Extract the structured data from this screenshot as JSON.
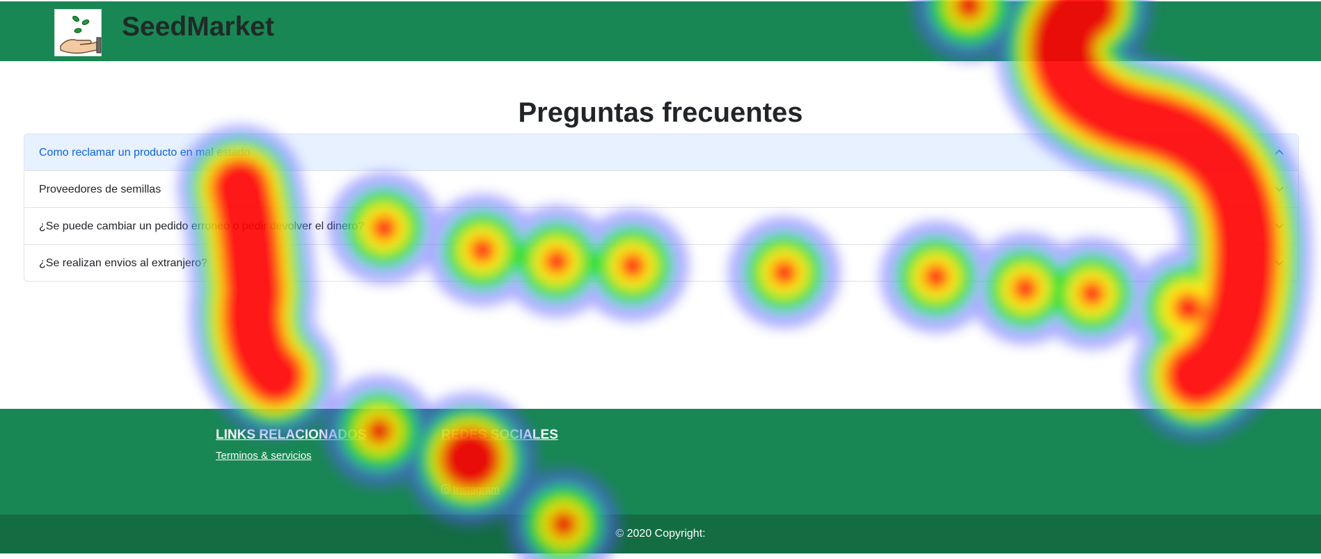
{
  "header": {
    "brand": "SeedMarket",
    "logo": "seed-hand-logo",
    "nav_hint": "",
    "colors": {
      "navbar": "#198754"
    }
  },
  "main": {
    "title": "Preguntas frecuentes",
    "faq": [
      {
        "question": "Como reclamar un producto en mal estado",
        "active": true
      },
      {
        "question": "Proveedores de semillas",
        "active": false
      },
      {
        "question": "¿Se puede cambiar un pedido erroneo o pedir devolver el dinero?",
        "active": false
      },
      {
        "question": "¿Se realizan envios al extranjero?",
        "active": false
      }
    ]
  },
  "footer": {
    "links_heading": "LINKS RELACIONADOS",
    "terms_link": "Terminos & servicios",
    "social_heading": "REDES SOCIALES",
    "instagram_link": "Instagram",
    "copyright": "© 2020 Copyright:",
    "colors": {
      "footer": "#198754",
      "copyright_bar": "#146c43"
    }
  },
  "heatmap": {
    "colors": [
      "#0000ff",
      "#00ff00",
      "#ffff00",
      "#ff0000"
    ]
  }
}
